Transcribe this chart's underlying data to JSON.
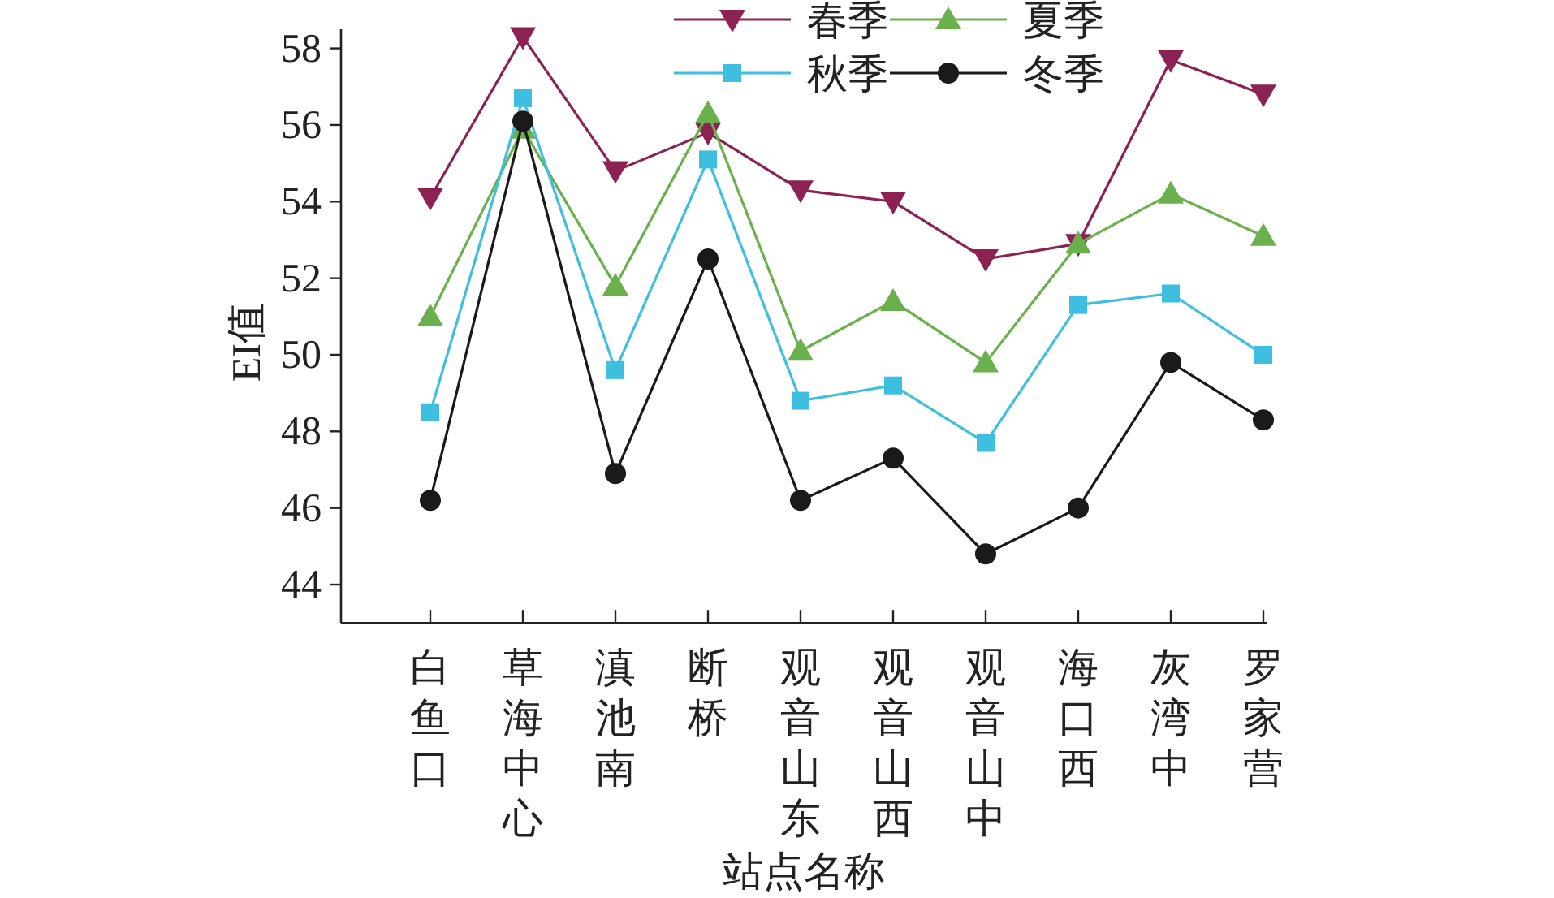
{
  "chart_data": {
    "type": "line",
    "xlabel": "站点名称",
    "ylabel": "EI值",
    "categories": [
      "白鱼口",
      "草海中心",
      "滇池南",
      "断桥",
      "观音山东",
      "观音山西",
      "观音山中",
      "海口西",
      "灰湾中",
      "罗家营"
    ],
    "series": [
      {
        "name": "春季",
        "color": "#8b2252",
        "marker": "triangle-down",
        "values": [
          54.1,
          58.3,
          54.8,
          55.8,
          54.3,
          54.0,
          52.5,
          52.9,
          57.7,
          56.8
        ]
      },
      {
        "name": "夏季",
        "color": "#6ab04c",
        "marker": "triangle",
        "values": [
          51.0,
          55.9,
          51.8,
          56.3,
          50.1,
          51.4,
          49.8,
          52.9,
          54.2,
          53.1
        ]
      },
      {
        "name": "秋季",
        "color": "#3fbfdf",
        "marker": "square",
        "values": [
          48.5,
          56.7,
          49.6,
          55.1,
          48.8,
          49.2,
          47.7,
          51.3,
          51.6,
          50.0
        ]
      },
      {
        "name": "冬季",
        "color": "#1a1a1a",
        "marker": "circle",
        "values": [
          46.2,
          56.1,
          46.9,
          52.5,
          46.2,
          47.3,
          44.8,
          46.0,
          49.8,
          48.3
        ]
      }
    ],
    "ylim": [
      43,
      58.5
    ],
    "yticks": [
      44,
      46,
      48,
      50,
      52,
      54,
      56,
      58
    ],
    "grid": false,
    "legend": "top right",
    "line_style": "solid"
  }
}
